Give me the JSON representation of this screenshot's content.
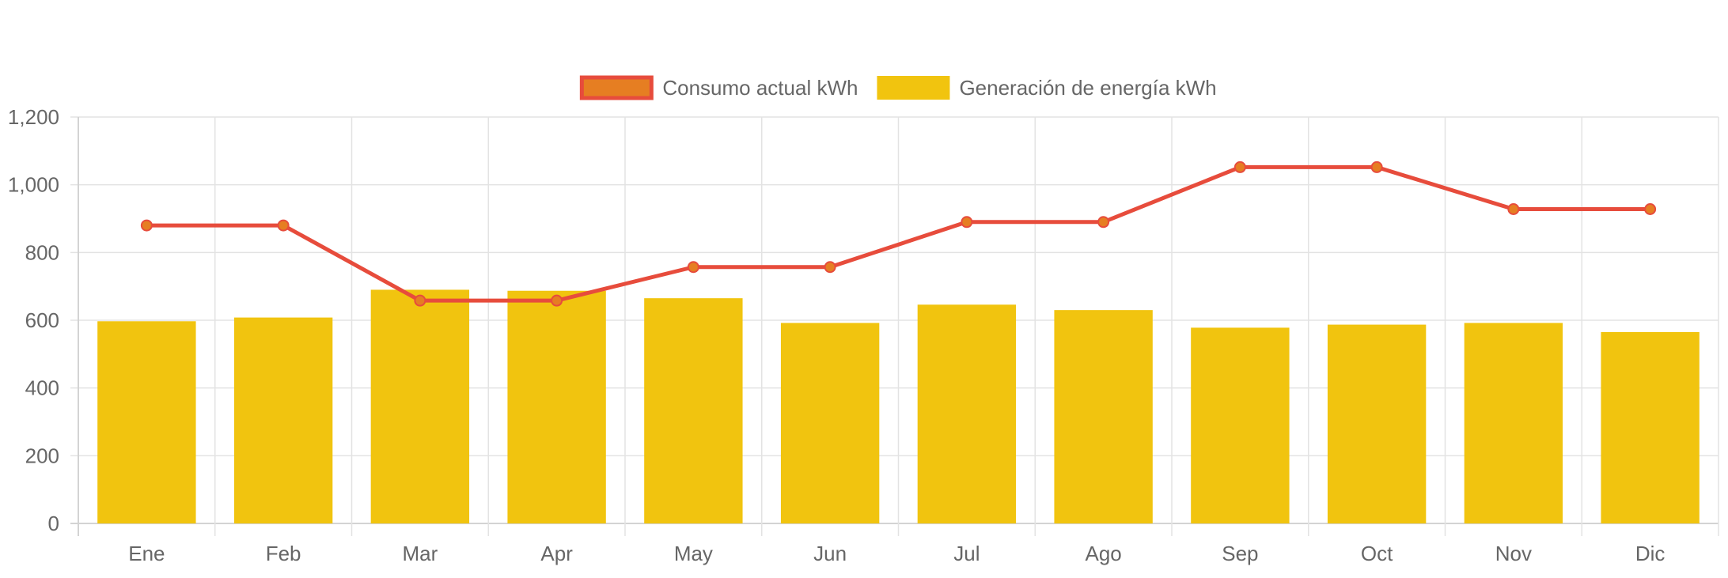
{
  "chart_data": {
    "type": "bar",
    "categories": [
      "Ene",
      "Feb",
      "Mar",
      "Apr",
      "May",
      "Jun",
      "Jul",
      "Ago",
      "Sep",
      "Oct",
      "Nov",
      "Dic"
    ],
    "series": [
      {
        "name": "Consumo actual kWh",
        "kind": "line",
        "values": [
          880,
          880,
          658,
          658,
          757,
          757,
          890,
          890,
          1052,
          1052,
          928,
          928
        ],
        "color": "#e74c3c",
        "point_fill": "#e67e22"
      },
      {
        "name": "Generación de energía kWh",
        "kind": "bar",
        "values": [
          597,
          608,
          690,
          687,
          665,
          592,
          646,
          630,
          578,
          587,
          592,
          565
        ],
        "color": "#f1c40f"
      }
    ],
    "title": "",
    "xlabel": "",
    "ylabel": "",
    "ylim": [
      0,
      1200
    ],
    "yticks": [
      0,
      200,
      400,
      600,
      800,
      1000,
      1200
    ],
    "ytick_labels": [
      "0",
      "200",
      "400",
      "600",
      "800",
      "1,000",
      "1,200"
    ],
    "grid": true,
    "legend": "top-center"
  },
  "colors": {
    "grid": "#e3e3e3",
    "axis": "#d3d3d3",
    "tick_text": "#666666",
    "legend_text": "#666666"
  }
}
